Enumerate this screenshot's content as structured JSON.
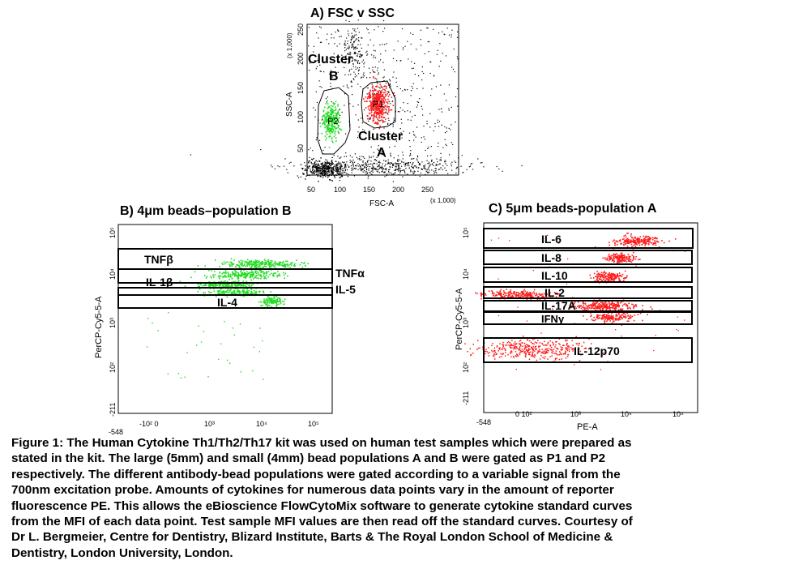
{
  "panels": {
    "a": {
      "title": "A) FSC v SSC",
      "xlabel": "FSC-A",
      "ylabel": "SSC-A",
      "x_multiplier": "(x 1,000)",
      "y_multiplier": "(x 1,000)",
      "x_ticks": [
        "50",
        "100",
        "150",
        "200",
        "250"
      ],
      "y_ticks": [
        "50",
        "100",
        "150",
        "200",
        "250"
      ],
      "gate_p1": "P1",
      "gate_p2": "P2",
      "cluster_a": [
        "Cluster",
        "A"
      ],
      "cluster_b": [
        "Cluster",
        "B"
      ]
    },
    "b": {
      "title": "B) 4μm beads–population B",
      "ylabel": "PerCP-Cy5-5-A",
      "x_ticks": [
        "-548",
        "-10² 0",
        "10³",
        "10⁴",
        "10⁵"
      ],
      "y_ticks": [
        "-211",
        "10²",
        "10³",
        "10⁴",
        "10⁵"
      ],
      "gates": [
        "TNFβ",
        "TNFα",
        "IL-1β",
        "IL-5",
        "IL-4"
      ]
    },
    "c": {
      "title": "C) 5μm beads-population A",
      "xlabel": "PE-A",
      "ylabel": "PerCP-Cy5-5-A",
      "x_ticks": [
        "-548",
        "0 10²",
        "10³",
        "10⁴",
        "10⁵"
      ],
      "y_ticks": [
        "-211",
        "10²",
        "10³",
        "10⁴",
        "10⁵"
      ],
      "gates": [
        "IL-6",
        "IL-8",
        "IL-10",
        "IL-2",
        "IL-17A",
        "IFNγ",
        "IL-12p70"
      ]
    }
  },
  "colors": {
    "p1": "#ff1a1a",
    "p2": "#22dd22",
    "dots": "#000000"
  },
  "caption": [
    "Figure 1: The Human Cytokine Th1/Th2/Th17 kit was used on human test samples which were prepared as",
    "stated in the kit. The large (5mm) and small (4mm) bead populations A and B were gated as P1 and P2",
    "respectively. The different antibody-bead populations were gated according to a variable signal from the",
    "700nm excitation probe. Amounts of cytokines for numerous data points vary in the amount of reporter",
    "fluorescence PE. This allows the eBioscience FlowCytoMix software to generate cytokine standard curves",
    "from the MFI of each data point. Test sample MFI values are then read off the standard curves. Courtesy of",
    "Dr L. Bergmeier, Centre for Dentistry, Blizard Institute,  Barts & The Royal London School of Medicine &",
    "Dentistry, London University, London."
  ]
}
